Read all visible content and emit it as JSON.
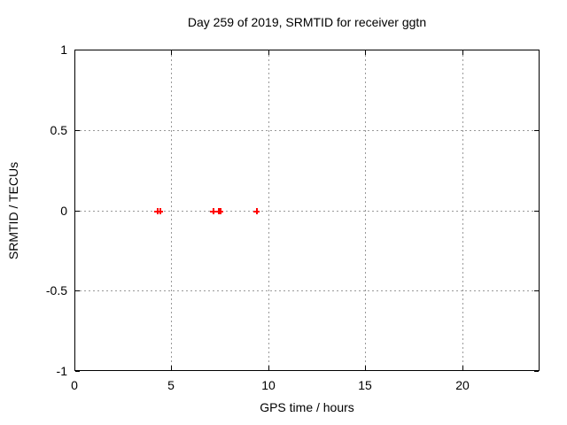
{
  "colors": {
    "background": "#ffffff",
    "axis": "#000000",
    "grid": "#999999",
    "marker": "#ff0000",
    "text": "#000000"
  },
  "chart_data": {
    "type": "scatter",
    "title": "Day 259 of 2019, SRMTID for receiver ggtn",
    "xlabel": "GPS time / hours",
    "ylabel": "SRMTID / TECUs",
    "xlim": [
      0,
      24
    ],
    "ylim": [
      -1,
      1
    ],
    "xticks": [
      0,
      5,
      10,
      15,
      20
    ],
    "xtick_labels": [
      "0",
      "5",
      "10",
      "15",
      "20"
    ],
    "yticks": [
      -1,
      -0.5,
      0,
      0.5,
      1
    ],
    "ytick_labels": [
      "-1",
      "-0.5",
      "0",
      "0.5",
      "1"
    ],
    "grid": true,
    "grid_style": "dotted",
    "ticks_mirrored": true,
    "legend": "none",
    "marker_style": "plus",
    "series": [
      {
        "name": "SRMTID",
        "color": "#ff0000",
        "points": [
          {
            "x": 4.25,
            "y": 0
          },
          {
            "x": 4.4,
            "y": 0
          },
          {
            "x": 7.15,
            "y": 0
          },
          {
            "x": 7.4,
            "y": 0
          },
          {
            "x": 7.5,
            "y": 0
          },
          {
            "x": 9.35,
            "y": 0
          }
        ]
      }
    ]
  }
}
